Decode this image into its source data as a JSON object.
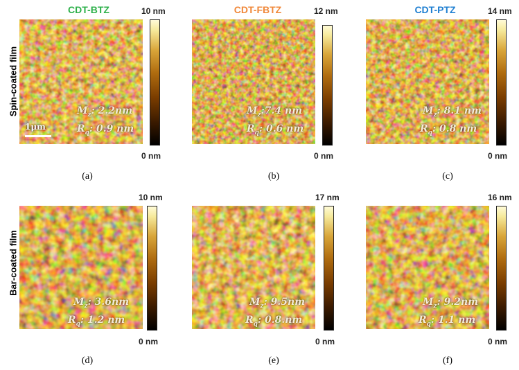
{
  "columns": [
    {
      "title": "CDT-BTZ",
      "color": "#2db04a"
    },
    {
      "title": "CDT-FBTZ",
      "color": "#f0883a"
    },
    {
      "title": "CDT-PTZ",
      "color": "#1f7fd1"
    }
  ],
  "rows": [
    {
      "label": "Spin-coated film"
    },
    {
      "label": "Bar-coated film"
    }
  ],
  "scale_bar": "1μm",
  "panels": [
    {
      "id": "(a)",
      "max": "10 nm",
      "min": "0 nm",
      "m_label": "M",
      "m_sub": "z",
      "m_value": ": 2.2nm",
      "r_label": "R",
      "r_sub": "q",
      "r_value": ": 0.9 nm"
    },
    {
      "id": "(b)",
      "max": "12 nm",
      "min": "0 nm",
      "m_label": "M",
      "m_sub": "z",
      "m_value": ":7.4 nm",
      "r_label": "R",
      "r_sub": "q",
      "r_value": ": 0.6 nm"
    },
    {
      "id": "(c)",
      "max": "14 nm",
      "min": "0 nm",
      "m_label": "M",
      "m_sub": "z",
      "m_value": ": 8.1 nm",
      "r_label": "R",
      "r_sub": "q",
      "r_value": ": 0.8 nm"
    },
    {
      "id": "(d)",
      "max": "10 nm",
      "min": "0 nm",
      "m_label": "M",
      "m_sub": "z",
      "m_value": ": 3.6nm",
      "r_label": "R",
      "r_sub": "q",
      "r_value": ": 1.2 nm"
    },
    {
      "id": "(e)",
      "max": "17 nm",
      "min": "0 nm",
      "m_label": "M",
      "m_sub": "z",
      "m_value": ": 9.5nm",
      "r_label": "R",
      "r_sub": "q",
      "r_value": ": 0.8.nm"
    },
    {
      "id": "(f)",
      "max": "16 nm",
      "min": "0 nm",
      "m_label": "M",
      "m_sub": "z",
      "m_value": ": 9.2nm",
      "r_label": "R",
      "r_sub": "q",
      "r_value": ": 1.1 nm"
    }
  ]
}
